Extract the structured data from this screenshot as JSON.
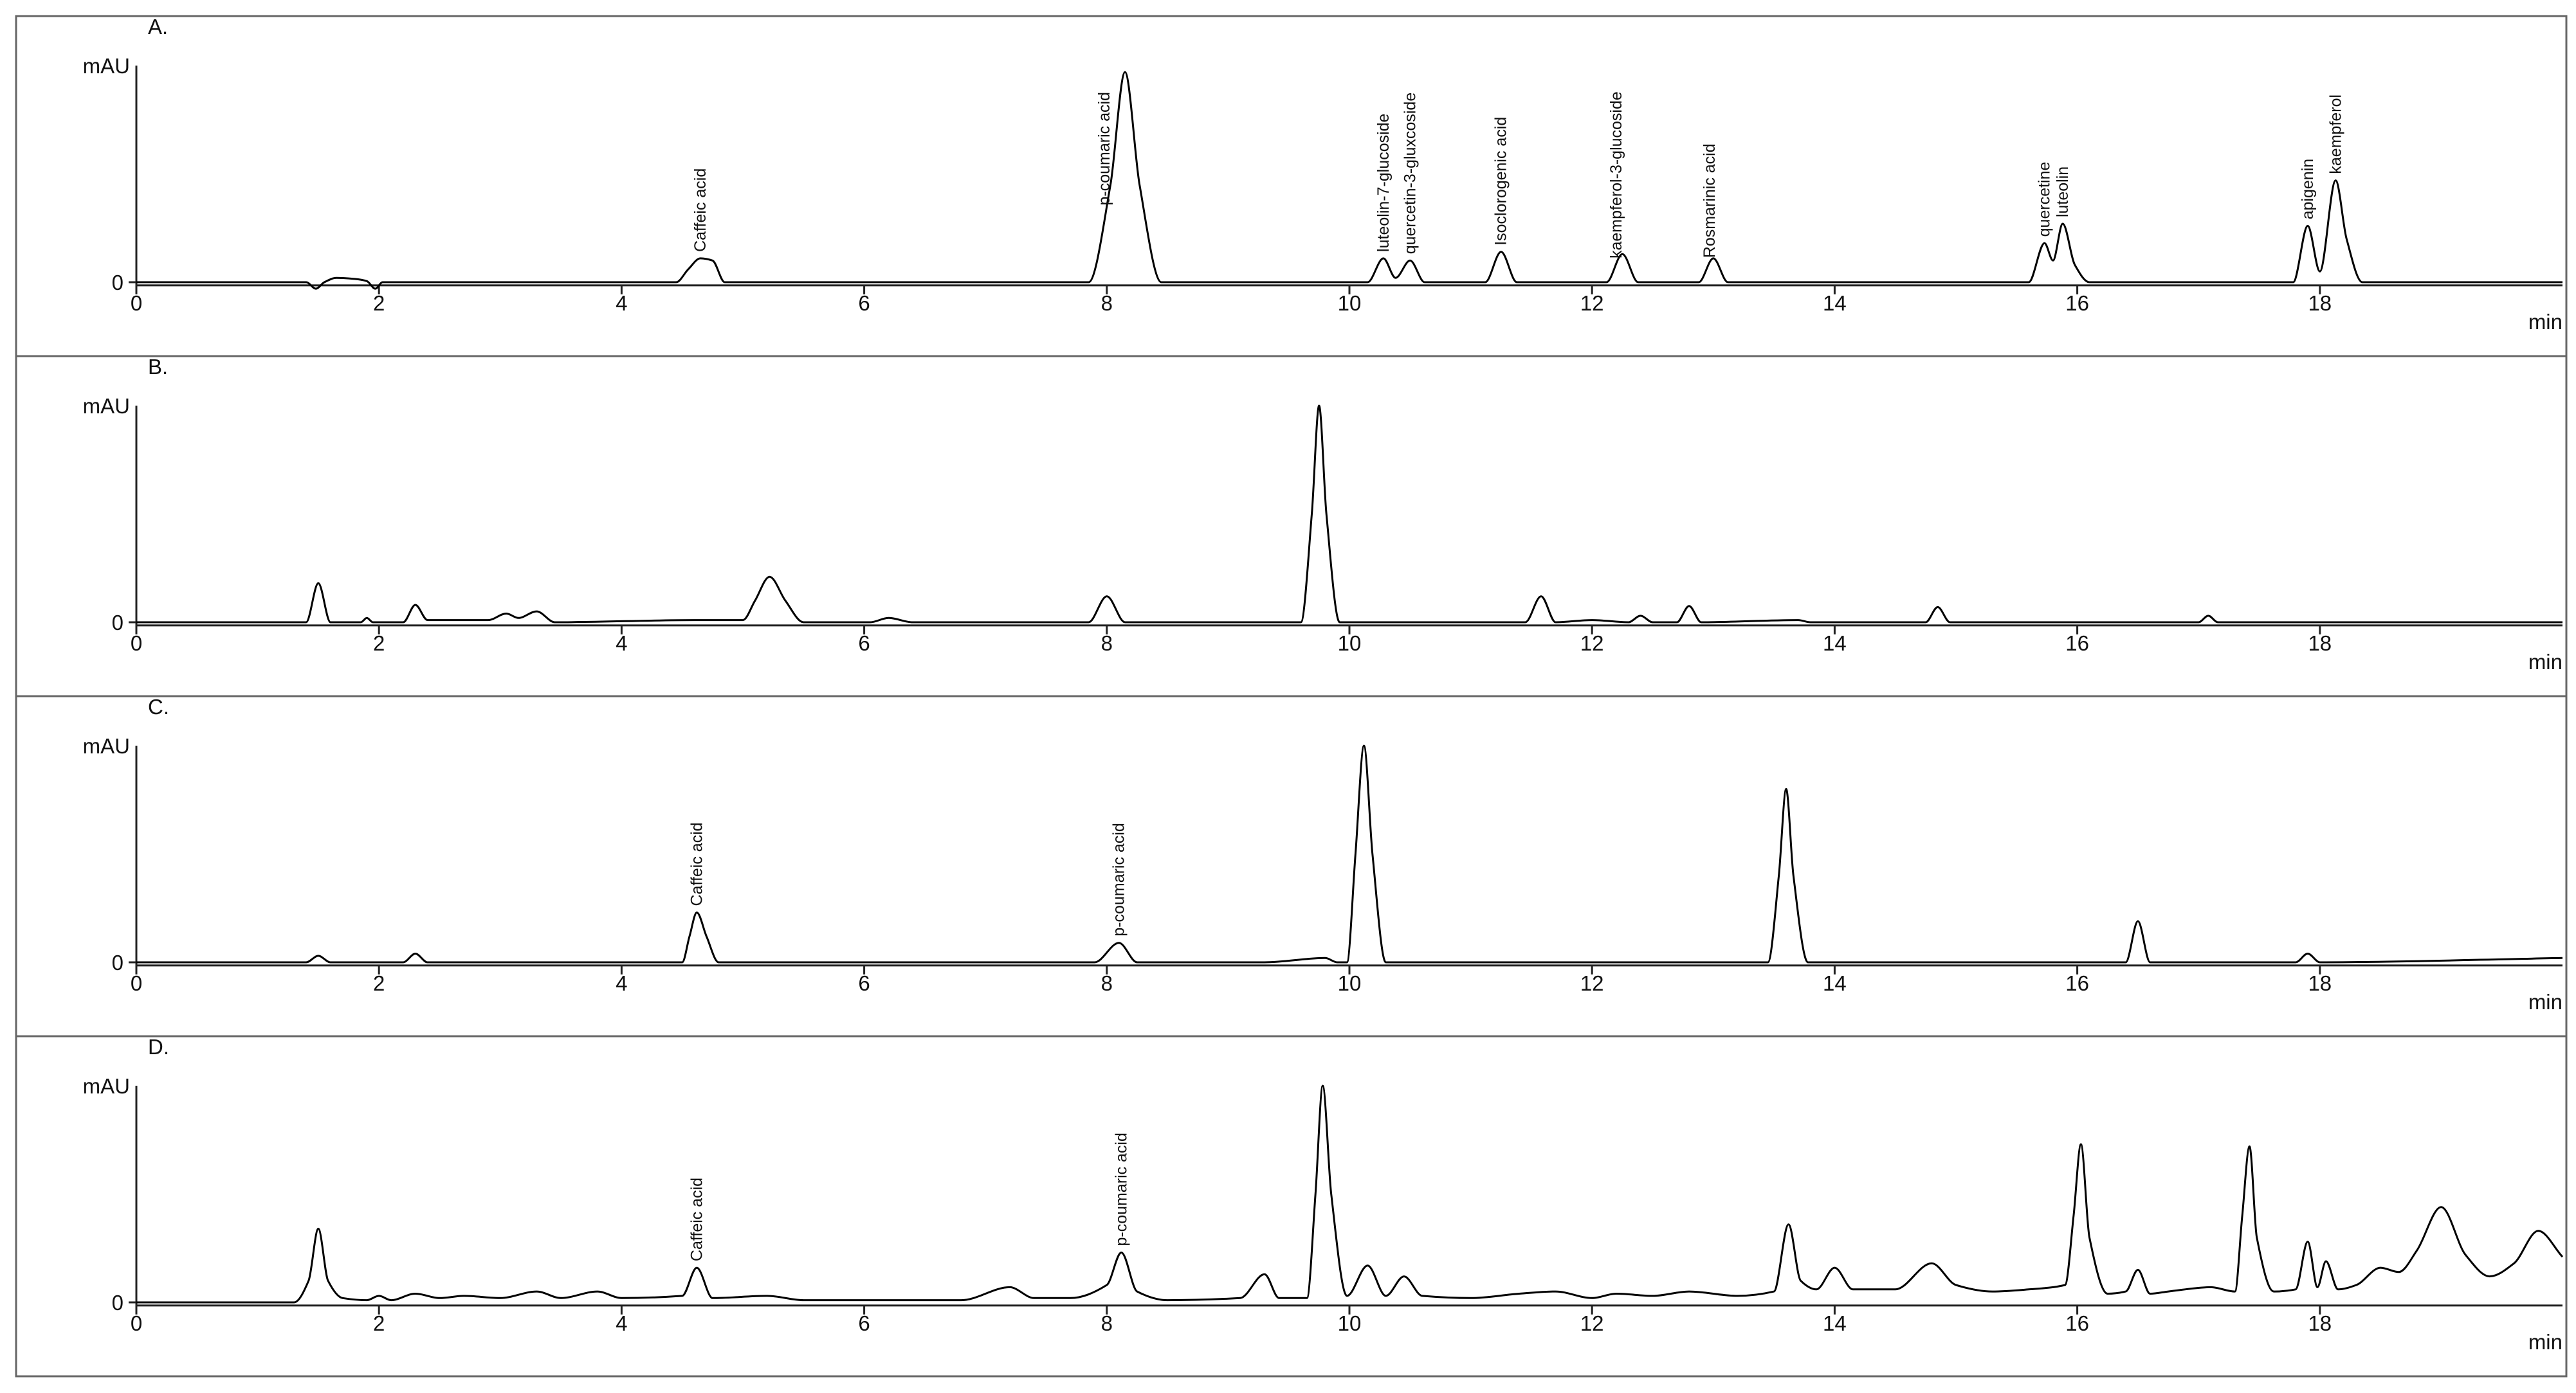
{
  "chart_data": [
    {
      "type": "line",
      "title": "A.",
      "ylabel": "mAU",
      "xlabel": "min",
      "color": "#000000",
      "xlim": [
        0,
        20
      ],
      "xticks": [
        0,
        2,
        4,
        6,
        8,
        10,
        12,
        14,
        16,
        18
      ],
      "ylim": [
        -5,
        100
      ],
      "yticks": [
        0
      ],
      "x": [
        0,
        1.4,
        1.48,
        1.55,
        1.65,
        1.8,
        1.9,
        1.97,
        2.03,
        4.45,
        4.55,
        4.65,
        4.75,
        4.85,
        7.85,
        8.03,
        8.15,
        8.27,
        8.45,
        10.15,
        10.28,
        10.38,
        10.5,
        10.62,
        11.12,
        11.25,
        11.38,
        12.12,
        12.25,
        12.38,
        12.88,
        13.0,
        13.12,
        15.6,
        15.73,
        15.8,
        15.88,
        15.98,
        16.1,
        17.78,
        17.9,
        18.0,
        18.13,
        18.22,
        18.35,
        20
      ],
      "values": [
        0,
        0,
        -3,
        0,
        2,
        1.5,
        0.5,
        -3,
        0,
        0,
        6,
        11,
        10,
        0,
        0,
        45,
        97,
        45,
        0,
        0,
        11,
        2,
        10,
        0,
        0,
        14,
        0,
        0,
        13,
        0,
        0,
        11,
        0,
        0,
        18,
        10,
        27,
        8,
        0,
        0,
        26,
        5,
        47,
        20,
        0,
        0
      ],
      "annotations": [
        {
          "text": "Caffeic acid",
          "x": 4.65
        },
        {
          "text": "p-coumaric acid",
          "x": 7.98
        },
        {
          "text": "luteolin-7-glucoside",
          "x": 10.28
        },
        {
          "text": "quercetin-3-gluxcoside",
          "x": 10.5
        },
        {
          "text": "Isoclorogenic acid",
          "x": 11.25
        },
        {
          "text": "kaempferol-3-glucoside",
          "x": 12.2
        },
        {
          "text": "Rosmarinic acid",
          "x": 12.97
        },
        {
          "text": "quercetine",
          "x": 15.73
        },
        {
          "text": "luteolin",
          "x": 15.88
        },
        {
          "text": "apigenin",
          "x": 17.9
        },
        {
          "text": "kaempferol",
          "x": 18.13
        }
      ]
    },
    {
      "type": "line",
      "title": "B.",
      "ylabel": "mAU",
      "xlabel": "min",
      "color": "#000000",
      "xlim": [
        0,
        20
      ],
      "xticks": [
        0,
        2,
        4,
        6,
        8,
        10,
        12,
        14,
        16,
        18
      ],
      "ylim": [
        -5,
        100
      ],
      "yticks": [
        0
      ],
      "x": [
        0,
        1.4,
        1.5,
        1.6,
        1.85,
        1.9,
        1.95,
        2.2,
        2.3,
        2.4,
        2.9,
        3.05,
        3.15,
        3.3,
        3.45,
        4.6,
        5.0,
        5.1,
        5.22,
        5.35,
        5.5,
        6.05,
        6.2,
        6.4,
        7.85,
        8.0,
        8.15,
        9.6,
        9.69,
        9.75,
        9.81,
        9.92,
        11.45,
        11.58,
        11.7,
        12.0,
        12.3,
        12.4,
        12.5,
        12.7,
        12.8,
        12.9,
        13.7,
        13.8,
        14.75,
        14.85,
        14.95,
        17.0,
        17.08,
        17.16,
        20
      ],
      "values": [
        0,
        0,
        18,
        0,
        0,
        2,
        0,
        0,
        8,
        1,
        1,
        4,
        2,
        5,
        0,
        1,
        1,
        10,
        21,
        10,
        0,
        0,
        2,
        0,
        0,
        12,
        0,
        0,
        50,
        100,
        50,
        0,
        0,
        12,
        0,
        1,
        0,
        3,
        0,
        0,
        7.5,
        0,
        1,
        0,
        0,
        7,
        0,
        0,
        3,
        0,
        0
      ],
      "annotations": []
    },
    {
      "type": "line",
      "title": "C.",
      "ylabel": "mAU",
      "xlabel": "min",
      "color": "#000000",
      "xlim": [
        0,
        20
      ],
      "xticks": [
        0,
        2,
        4,
        6,
        8,
        10,
        12,
        14,
        16,
        18
      ],
      "ylim": [
        -5,
        100
      ],
      "yticks": [
        0
      ],
      "x": [
        0,
        1.4,
        1.5,
        1.6,
        2.2,
        2.3,
        2.4,
        3.8,
        4.5,
        4.56,
        4.62,
        4.7,
        4.8,
        7.9,
        8.1,
        8.25,
        9.3,
        9.8,
        9.9,
        9.98,
        10.05,
        10.12,
        10.19,
        10.3,
        13.45,
        13.54,
        13.6,
        13.66,
        13.78,
        16.4,
        16.5,
        16.6,
        17.8,
        17.9,
        18.0,
        20
      ],
      "values": [
        0,
        0,
        3,
        0,
        0,
        4,
        0,
        0,
        0,
        12,
        23,
        12,
        0,
        0,
        9,
        0,
        0,
        2,
        0,
        0,
        50,
        100,
        50,
        0,
        0,
        40,
        80,
        40,
        0,
        0,
        19,
        0,
        0,
        4,
        0,
        2
      ],
      "annotations": [
        {
          "text": "Caffeic acid",
          "x": 4.62
        },
        {
          "text": "p-coumaric acid",
          "x": 8.1
        }
      ]
    },
    {
      "type": "line",
      "title": "D.",
      "ylabel": "mAU",
      "xlabel": "min",
      "color": "#000000",
      "xlim": [
        0,
        20
      ],
      "xticks": [
        0,
        2,
        4,
        6,
        8,
        10,
        12,
        14,
        16,
        18
      ],
      "ylim": [
        -5,
        100
      ],
      "yticks": [
        0
      ],
      "x": [
        0,
        1.3,
        1.42,
        1.5,
        1.58,
        1.7,
        1.9,
        2.0,
        2.1,
        2.3,
        2.5,
        2.7,
        3.0,
        3.3,
        3.5,
        3.8,
        4.0,
        4.5,
        4.62,
        4.75,
        5.2,
        5.5,
        6.8,
        7.2,
        7.4,
        7.7,
        8.0,
        8.12,
        8.25,
        8.5,
        9.1,
        9.3,
        9.42,
        9.65,
        9.72,
        9.78,
        9.85,
        9.98,
        10.15,
        10.3,
        10.45,
        10.6,
        11.0,
        11.4,
        11.7,
        12.0,
        12.2,
        12.5,
        12.8,
        13.2,
        13.5,
        13.62,
        13.72,
        13.85,
        14.0,
        14.15,
        14.5,
        14.8,
        15.0,
        15.3,
        15.6,
        15.9,
        15.97,
        16.03,
        16.1,
        16.25,
        16.4,
        16.5,
        16.6,
        16.75,
        17.1,
        17.3,
        17.36,
        17.42,
        17.48,
        17.62,
        17.8,
        17.9,
        17.98,
        18.05,
        18.15,
        18.3,
        18.5,
        18.65,
        18.8,
        19.0,
        19.2,
        19.4,
        19.6,
        19.8,
        20
      ],
      "values": [
        0,
        0,
        10,
        34,
        10,
        2,
        1,
        3,
        1,
        4,
        2,
        3,
        2,
        5,
        2,
        5,
        2,
        3,
        16,
        2,
        3,
        1,
        1,
        7,
        2,
        2,
        8,
        23,
        5,
        1,
        2,
        13,
        2,
        2,
        50,
        100,
        50,
        3,
        17,
        3,
        12,
        3,
        2,
        4,
        5,
        2,
        4,
        3,
        5,
        3,
        5,
        36,
        10,
        6,
        16,
        6,
        6,
        18,
        8,
        5,
        6,
        8,
        40,
        73,
        30,
        4,
        5,
        15,
        4,
        5,
        7,
        5,
        40,
        72,
        30,
        5,
        6,
        28,
        7,
        19,
        6,
        8,
        16,
        14,
        24,
        44,
        22,
        12,
        18,
        33,
        21
      ],
      "annotations": [
        {
          "text": "Caffeic acid",
          "x": 4.62
        },
        {
          "text": "p-coumaric acid",
          "x": 8.12
        }
      ]
    }
  ]
}
